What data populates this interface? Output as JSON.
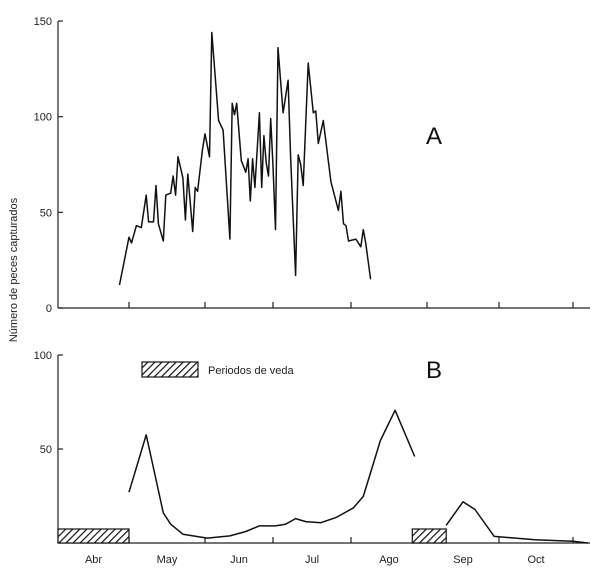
{
  "chart_data": [
    {
      "type": "line",
      "panel_label": "A",
      "ylabel": "Número de peces capturados",
      "ylim": [
        0,
        150
      ],
      "yticks": [
        0,
        50,
        100,
        150
      ],
      "xtick_labels": [
        "Abr",
        "May",
        "Jun",
        "Jul",
        "Ago",
        "Sep",
        "Oct"
      ],
      "grid": false,
      "x": [
        "04-27",
        "05-01",
        "05-02",
        "05-04",
        "05-06",
        "05-08",
        "05-09",
        "05-11",
        "05-12",
        "05-13",
        "05-15",
        "05-16",
        "05-18",
        "05-19",
        "05-20",
        "05-21",
        "05-23",
        "05-24",
        "05-25",
        "05-27",
        "05-28",
        "05-29",
        "05-31",
        "06-01",
        "06-03",
        "06-04",
        "06-07",
        "06-09",
        "06-12",
        "06-13",
        "06-14",
        "06-15",
        "06-17",
        "06-19",
        "06-20",
        "06-21",
        "06-22",
        "06-23",
        "06-25",
        "06-26",
        "06-27",
        "06-28",
        "06-29",
        "06-30",
        "07-01",
        "07-02",
        "07-03",
        "07-05",
        "07-07",
        "07-08",
        "07-10",
        "07-11",
        "07-12",
        "07-13",
        "07-15",
        "07-17",
        "07-18",
        "07-19",
        "07-21",
        "07-24",
        "07-27",
        "07-28",
        "07-29",
        "07-30",
        "07-31",
        "08-03",
        "08-05",
        "08-06",
        "08-07",
        "08-09"
      ],
      "y": [
        12,
        37,
        34,
        43,
        42,
        59,
        45,
        45,
        64,
        44,
        35,
        59,
        60,
        69,
        59,
        79,
        68,
        46,
        70,
        40,
        63,
        61,
        83,
        91,
        79,
        144,
        98,
        93,
        36,
        107,
        101,
        107,
        77,
        71,
        78,
        56,
        78,
        63,
        102,
        63,
        90,
        76,
        69,
        99,
        74,
        41,
        136,
        102,
        119,
        79,
        17,
        80,
        75,
        64,
        128,
        102,
        103,
        86,
        98,
        66,
        51,
        61,
        44,
        43,
        35,
        36,
        32,
        41,
        34,
        15
      ]
    },
    {
      "type": "line",
      "panel_label": "B",
      "ylim": [
        0,
        100
      ],
      "yticks": [
        50,
        100
      ],
      "xtick_labels": [
        "Abr",
        "May",
        "Jun",
        "Jul",
        "Ago",
        "Sep",
        "Oct"
      ],
      "grid": false,
      "legend": {
        "label": "Periodos de veda",
        "placement": "top-left"
      },
      "closure_periods": [
        [
          "04-01",
          "05-01"
        ],
        [
          "08-26",
          "09-09"
        ]
      ],
      "series": [
        {
          "x": [
            "05-01",
            "05-08",
            "05-15",
            "05-18",
            "05-23",
            "06-02",
            "06-12",
            "06-19",
            "06-25",
            "07-02",
            "07-06",
            "07-10",
            "07-14",
            "07-20",
            "07-26",
            "08-02",
            "08-06",
            "08-13",
            "08-19",
            "08-27"
          ],
          "y": [
            27,
            57.5,
            16,
            10,
            4.7,
            2.6,
            3.8,
            6.1,
            9.1,
            9.1,
            10,
            13,
            11.4,
            10.8,
            13.5,
            18.7,
            24.8,
            54.5,
            70.6,
            46
          ]
        },
        {
          "x": [
            "09-09",
            "09-16",
            "09-21",
            "09-29",
            "10-16",
            "11-01",
            "11-07"
          ],
          "y": [
            9.4,
            21.9,
            17.8,
            3.5,
            1.7,
            0.9,
            0
          ]
        }
      ]
    }
  ]
}
